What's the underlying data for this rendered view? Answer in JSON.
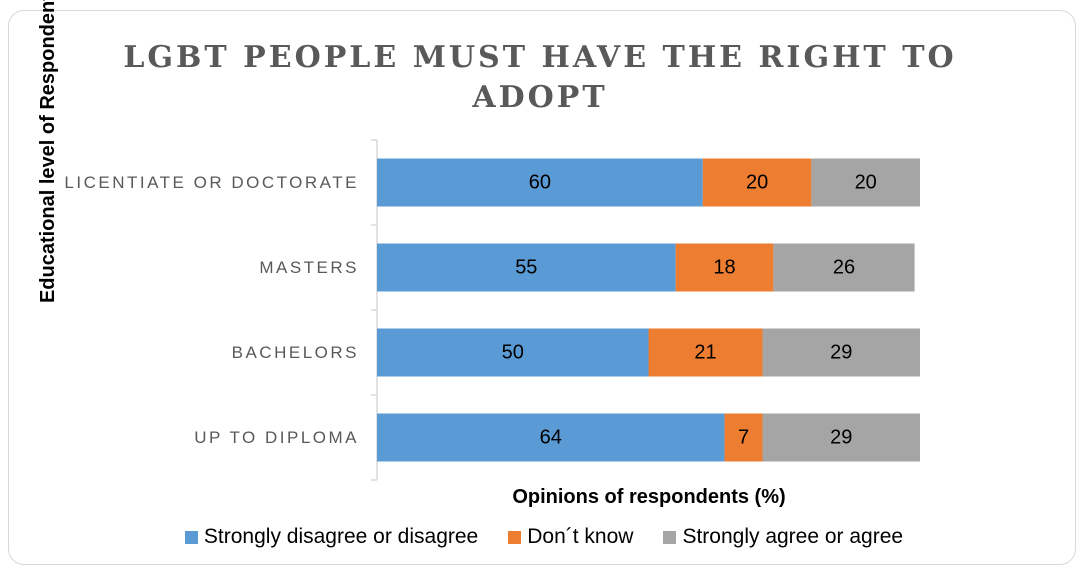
{
  "chart_data": {
    "type": "bar",
    "orientation": "horizontal",
    "stacked": true,
    "title": "LGBT PEOPLE MUST HAVE THE RIGHT TO ADOPT",
    "xlabel": "Opinions of respondents (%)",
    "ylabel": "Educational level of Respondents",
    "categories": [
      "LICENTIATE OR DOCTORATE",
      "MASTERS",
      "BACHELORS",
      "UP TO DIPLOMA"
    ],
    "series": [
      {
        "name": "Strongly disagree or disagree",
        "color": "#5B9BD5",
        "values": [
          60,
          55,
          50,
          64
        ]
      },
      {
        "name": "Don´t know",
        "color": "#ED7D31",
        "values": [
          20,
          18,
          21,
          7
        ]
      },
      {
        "name": "Strongly agree or agree",
        "color": "#A5A5A5",
        "values": [
          20,
          26,
          29,
          29
        ]
      }
    ],
    "grid": false,
    "legend_position": "bottom",
    "data_labels": true
  }
}
